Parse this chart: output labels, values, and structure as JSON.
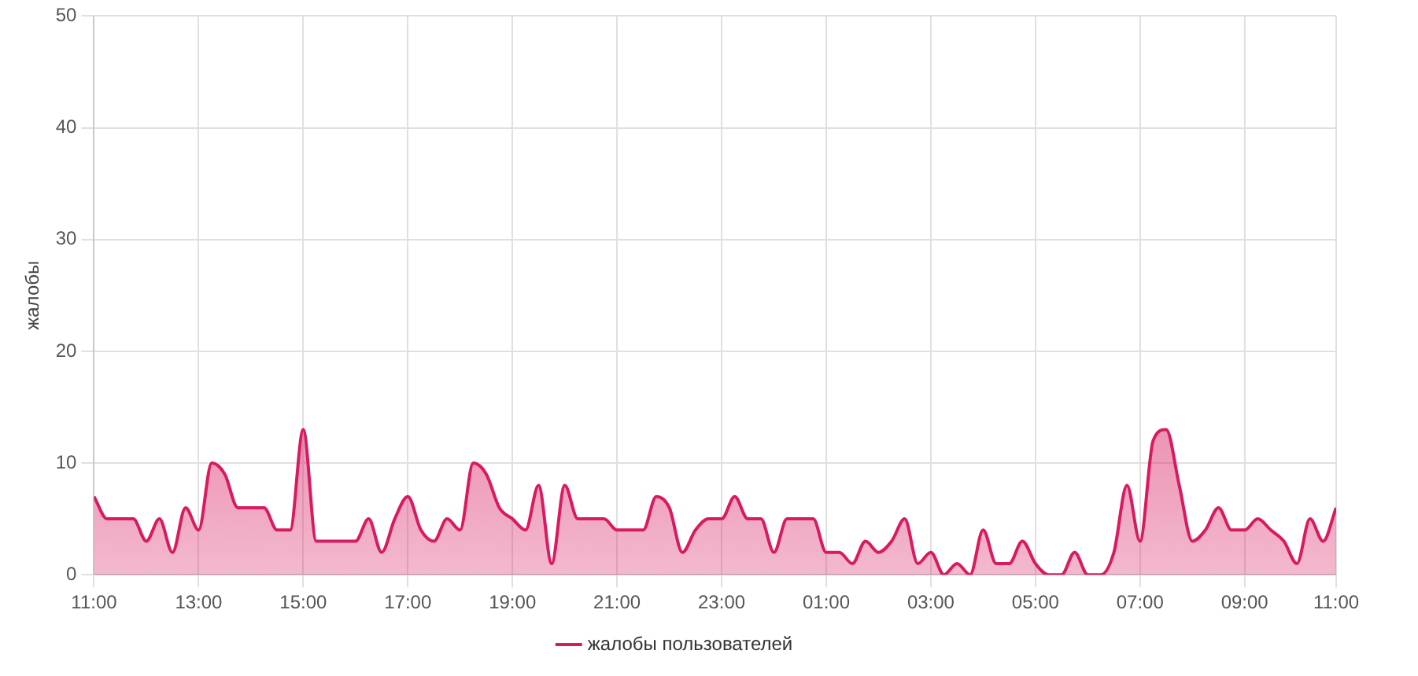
{
  "chart_data": {
    "type": "area",
    "ylabel": "жалобы",
    "legend": "bottom",
    "grid": true,
    "marker": "none",
    "line_style": "solid",
    "ylim": [
      0,
      50
    ],
    "yticks": [
      0,
      10,
      20,
      30,
      40,
      50
    ],
    "categories": [
      "11:00",
      null,
      null,
      null,
      null,
      null,
      null,
      null,
      "13:00",
      null,
      null,
      null,
      null,
      null,
      null,
      null,
      "15:00",
      null,
      null,
      null,
      null,
      null,
      null,
      null,
      "17:00",
      null,
      null,
      null,
      null,
      null,
      null,
      null,
      "19:00",
      null,
      null,
      null,
      null,
      null,
      null,
      null,
      "21:00",
      null,
      null,
      null,
      null,
      null,
      null,
      null,
      "23:00",
      null,
      null,
      null,
      null,
      null,
      null,
      null,
      "01:00",
      null,
      null,
      null,
      null,
      null,
      null,
      null,
      "03:00",
      null,
      null,
      null,
      null,
      null,
      null,
      null,
      "05:00",
      null,
      null,
      null,
      null,
      null,
      null,
      null,
      "07:00",
      null,
      null,
      null,
      null,
      null,
      null,
      null,
      "09:00",
      null,
      null,
      null,
      null,
      null,
      null,
      "11:00"
    ],
    "series": [
      {
        "name": "жалобы пользователей",
        "color": "#d81b60",
        "values": [
          7,
          5,
          5,
          5,
          3,
          5,
          2,
          6,
          4,
          10,
          9,
          6,
          6,
          6,
          4,
          4,
          13,
          3,
          3,
          3,
          3,
          5,
          2,
          5,
          7,
          4,
          3,
          5,
          4,
          10,
          9,
          6,
          5,
          4,
          8,
          1,
          8,
          5,
          5,
          5,
          4,
          4,
          4,
          7,
          6,
          2,
          4,
          5,
          5,
          7,
          5,
          5,
          2,
          5,
          5,
          5,
          2,
          2,
          1,
          3,
          2,
          3,
          5,
          1,
          2,
          0,
          1,
          0,
          4,
          1,
          1,
          3,
          1,
          0,
          0,
          2,
          0,
          0,
          2,
          8,
          3,
          12,
          13,
          8,
          3,
          4,
          6,
          4,
          4,
          5,
          4,
          3,
          1,
          5,
          3,
          6
        ]
      }
    ]
  }
}
